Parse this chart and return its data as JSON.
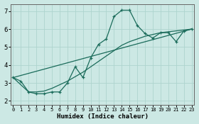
{
  "xlabel": "Humidex (Indice chaleur)",
  "bg_color": "#cce8e4",
  "line_color": "#1a6b5a",
  "line1_x": [
    0,
    1,
    2,
    3,
    4,
    5,
    6,
    7,
    8,
    9,
    10,
    11,
    12,
    13,
    14,
    15,
    16,
    17,
    18,
    19,
    20,
    21,
    22,
    23
  ],
  "line1_y": [
    3.3,
    3.1,
    2.5,
    2.4,
    2.4,
    2.5,
    2.5,
    3.0,
    3.9,
    3.3,
    4.4,
    5.15,
    5.45,
    6.7,
    7.05,
    7.05,
    6.2,
    5.75,
    5.5,
    5.8,
    5.8,
    5.3,
    5.9,
    6.0
  ],
  "line2_x": [
    0,
    2,
    3,
    4,
    5,
    6,
    7,
    8,
    9,
    10,
    11,
    12,
    13,
    14,
    15,
    16,
    17,
    18,
    19,
    20,
    21,
    22,
    23
  ],
  "line2_y": [
    3.3,
    2.5,
    2.5,
    2.55,
    2.7,
    2.9,
    3.1,
    3.35,
    3.6,
    3.9,
    4.2,
    4.5,
    4.8,
    5.1,
    5.3,
    5.45,
    5.6,
    5.7,
    5.8,
    5.85,
    5.9,
    5.95,
    6.0
  ],
  "line3_x": [
    0,
    23
  ],
  "line3_y": [
    3.3,
    6.0
  ],
  "ylim": [
    1.8,
    7.4
  ],
  "xlim": [
    -0.3,
    23.3
  ],
  "yticks": [
    2,
    3,
    4,
    5,
    6,
    7
  ],
  "xticks": [
    0,
    1,
    2,
    3,
    4,
    5,
    6,
    7,
    8,
    9,
    10,
    11,
    12,
    13,
    14,
    15,
    16,
    17,
    18,
    19,
    20,
    21,
    22,
    23
  ],
  "grid_color": "#aed4ce",
  "marker": "+",
  "figw": 2.8,
  "figh": 1.75
}
